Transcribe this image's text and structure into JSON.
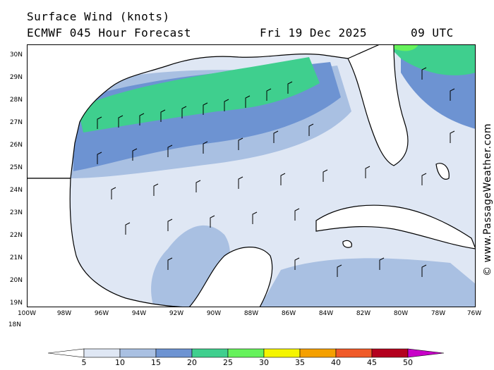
{
  "header": {
    "line1": "Surface Wind (knots)",
    "line2": "ECMWF 045 Hour Forecast",
    "date": "Fri 19 Dec 2025",
    "time": "09 UTC"
  },
  "credit": "© www.PassageWeather.com",
  "map": {
    "lat_labels": [
      "30N",
      "29N",
      "28N",
      "27N",
      "26N",
      "25N",
      "24N",
      "23N",
      "22N",
      "21N",
      "20N",
      "19N",
      "18N"
    ],
    "lon_labels": [
      "100W",
      "98W",
      "96W",
      "94W",
      "92W",
      "90W",
      "88W",
      "86W",
      "84W",
      "82W",
      "80W",
      "78W",
      "76W"
    ],
    "colors": {
      "c5": "#dfe7f4",
      "c10": "#a9c0e2",
      "c15": "#6d93d2",
      "c20": "#3fcf8e",
      "c25": "#66f25c",
      "land": "#ffffff",
      "coast": "#000000",
      "barb": "#000000"
    }
  },
  "colorbar": {
    "labels": [
      "5",
      "10",
      "15",
      "20",
      "25",
      "30",
      "35",
      "40",
      "45",
      "50"
    ],
    "colors": [
      "#dfe7f4",
      "#a9c0e2",
      "#6d93d2",
      "#3fcf8e",
      "#66f25c",
      "#f5f500",
      "#f5a000",
      "#f05a28",
      "#e02a3c",
      "#b4001e"
    ],
    "under_color": "#ffffff",
    "over_color": "#c800c8"
  }
}
